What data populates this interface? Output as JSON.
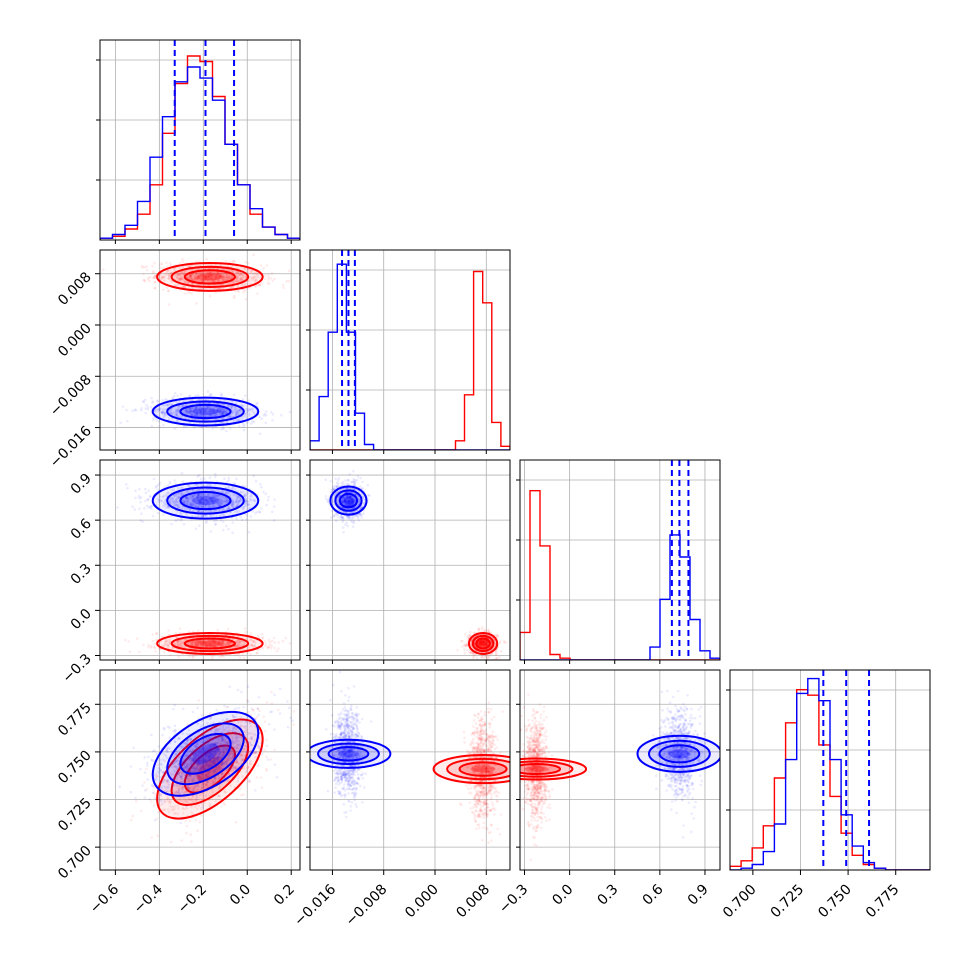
{
  "chart_data": {
    "type": "scatter",
    "title": "",
    "colors": {
      "series_a": "#ff0000",
      "series_b": "#0000ff"
    },
    "variables": [
      {
        "ticks": [
          "−0.6",
          "−0.4",
          "−0.2",
          "0.0",
          "0.2"
        ],
        "tick_values": [
          -0.6,
          -0.4,
          -0.2,
          0.0,
          0.2
        ],
        "range": [
          -0.67,
          0.24
        ]
      },
      {
        "ticks": [
          "−0.016",
          "−0.008",
          "0.000",
          "0.008"
        ],
        "tick_values": [
          -0.016,
          -0.008,
          0.0,
          0.008
        ],
        "range": [
          -0.0195,
          0.0117
        ]
      },
      {
        "ticks": [
          "−0.3",
          "0.0",
          "0.3",
          "0.6",
          "0.9"
        ],
        "tick_values": [
          -0.3,
          0.0,
          0.3,
          0.6,
          0.9
        ],
        "range": [
          -0.33,
          1.0
        ]
      },
      {
        "ticks": [
          "0.700",
          "0.725",
          "0.750",
          "0.775"
        ],
        "tick_values": [
          0.7,
          0.725,
          0.75,
          0.775
        ],
        "range": [
          0.688,
          0.793
        ]
      }
    ],
    "series": [
      {
        "color": "#ff0000",
        "means": [
          -0.17,
          0.0075,
          -0.22,
          0.741
        ],
        "stds": [
          0.12,
          0.0011,
          0.035,
          0.013
        ],
        "correlation_x0_x3": 0.6,
        "histograms": [
          [
            0.01,
            0.02,
            0.06,
            0.14,
            0.3,
            0.58,
            0.85,
            1.0,
            0.97,
            0.78,
            0.52,
            0.3,
            0.14,
            0.07,
            0.03,
            0.01
          ],
          [
            0.0,
            0.0,
            0.0,
            0.0,
            0.0,
            0.0,
            0.0,
            0.0,
            0.0,
            0.0,
            0.0,
            0.0,
            0.0,
            0.0,
            0.0,
            0.0,
            0.05,
            0.3,
            0.97,
            0.8,
            0.15,
            0.02
          ],
          [
            0.15,
            0.92,
            0.62,
            0.03,
            0.01,
            0.0,
            0.0,
            0.0,
            0.0,
            0.0,
            0.0,
            0.0,
            0.0,
            0.0,
            0.0,
            0.0,
            0.0,
            0.0,
            0.0,
            0.0
          ],
          [
            0.02,
            0.05,
            0.12,
            0.24,
            0.5,
            0.8,
            0.98,
            0.95,
            0.68,
            0.4,
            0.2,
            0.08,
            0.03,
            0.01,
            0.0,
            0.0,
            0.0,
            0.0
          ]
        ]
      },
      {
        "color": "#0000ff",
        "means": [
          -0.19,
          -0.0135,
          0.73,
          0.749
        ],
        "stds": [
          0.12,
          0.0011,
          0.06,
          0.011
        ],
        "correlation_x0_x3": 0.5,
        "histograms": [
          [
            0.01,
            0.03,
            0.08,
            0.21,
            0.45,
            0.67,
            0.86,
            0.94,
            0.88,
            0.76,
            0.52,
            0.3,
            0.17,
            0.07,
            0.03,
            0.01
          ],
          [
            0.05,
            0.29,
            0.64,
            1.01,
            0.64,
            0.2,
            0.03,
            0.0,
            0.0,
            0.0,
            0.0,
            0.0,
            0.0,
            0.0,
            0.0,
            0.0,
            0.0,
            0.0,
            0.0,
            0.0,
            0.0,
            0.0
          ],
          [
            0.0,
            0.0,
            0.0,
            0.0,
            0.0,
            0.0,
            0.0,
            0.0,
            0.0,
            0.0,
            0.0,
            0.0,
            0.0,
            0.07,
            0.33,
            0.68,
            0.56,
            0.22,
            0.05,
            0.01
          ],
          [
            0.0,
            0.01,
            0.03,
            0.1,
            0.25,
            0.6,
            0.96,
            1.04,
            0.92,
            0.6,
            0.3,
            0.13,
            0.04,
            0.01,
            0.0,
            0.0,
            0.0,
            0.0
          ]
        ]
      }
    ],
    "quantile_lines": {
      "color": "#0000ff",
      "values": [
        [
          -0.33,
          -0.19,
          -0.06
        ],
        [
          -0.0145,
          -0.0135,
          -0.0125
        ],
        [
          0.68,
          0.73,
          0.79
        ],
        [
          0.737,
          0.749,
          0.761
        ]
      ]
    }
  }
}
